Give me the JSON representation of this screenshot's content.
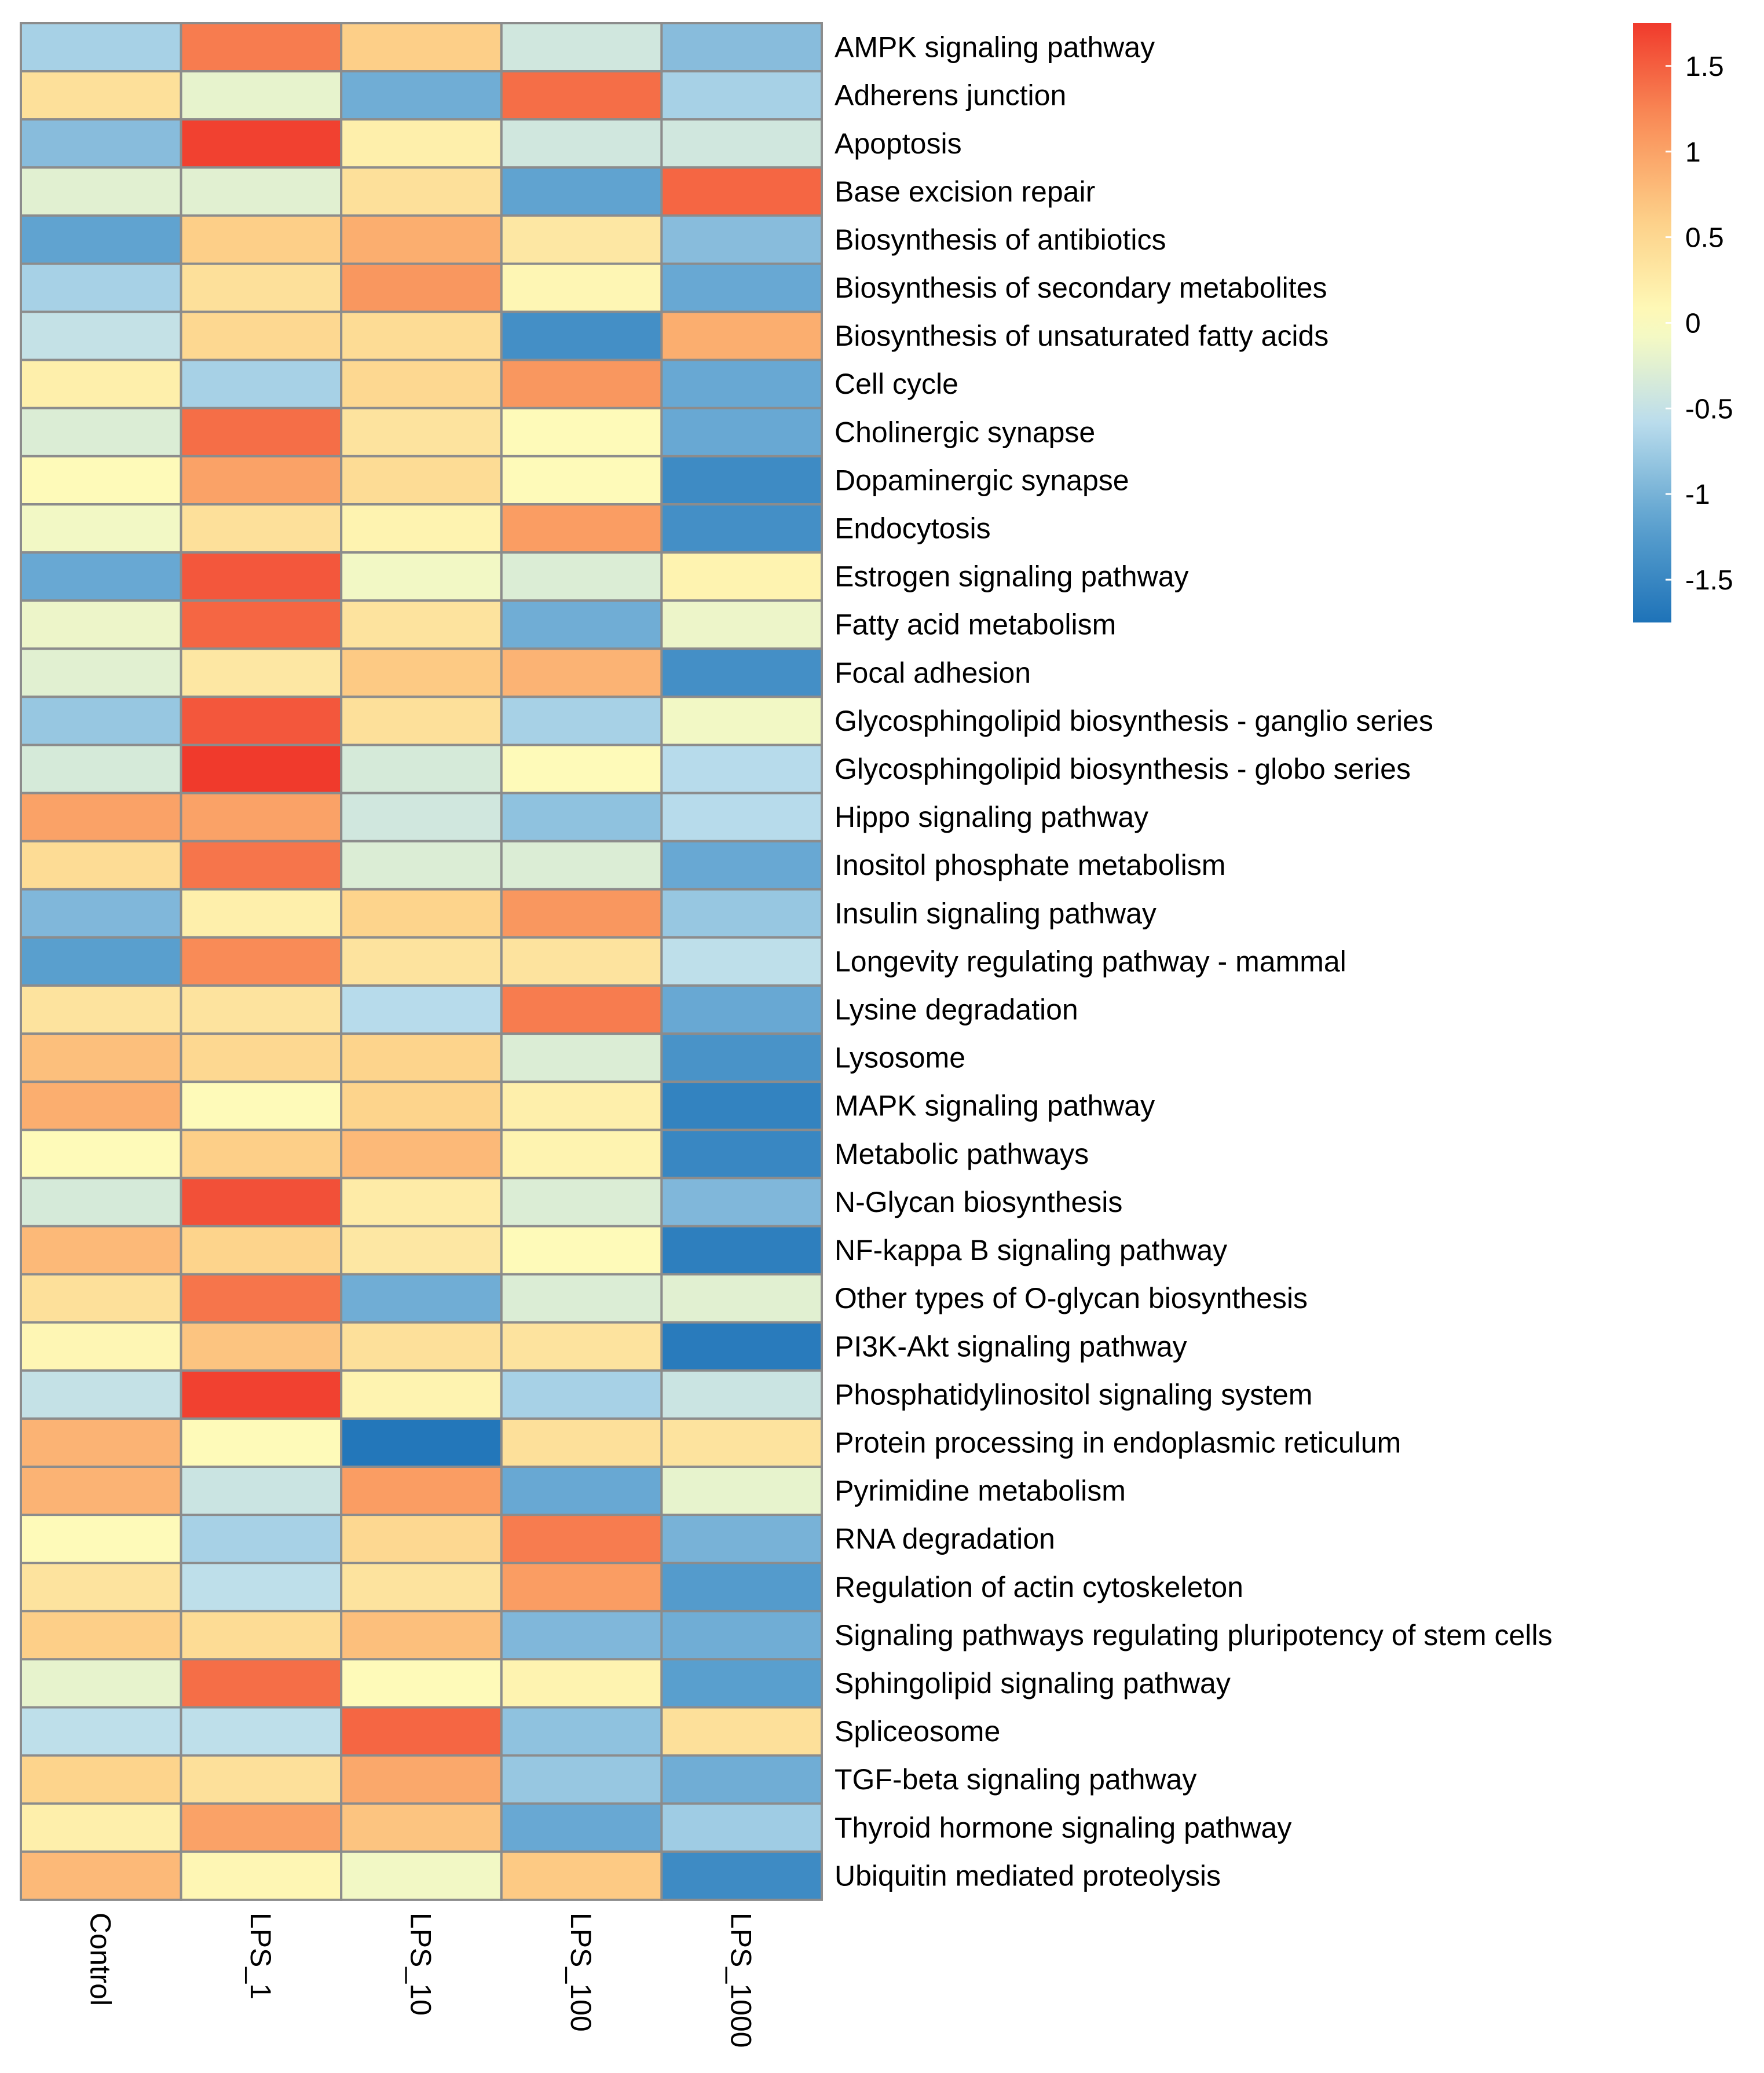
{
  "chart_data": {
    "type": "heatmap",
    "title": "",
    "xlabel": "",
    "ylabel": "",
    "columns": [
      "Control",
      "LPS_1",
      "LPS_10",
      "LPS_100",
      "LPS_1000"
    ],
    "rows": [
      "AMPK signaling pathway",
      "Adherens junction",
      "Apoptosis",
      "Base excision repair",
      "Biosynthesis of antibiotics",
      "Biosynthesis of secondary metabolites",
      "Biosynthesis of unsaturated fatty acids",
      "Cell cycle",
      "Cholinergic synapse",
      "Dopaminergic synapse",
      "Endocytosis",
      "Estrogen signaling pathway",
      "Fatty acid metabolism",
      "Focal adhesion",
      "Glycosphingolipid biosynthesis - ganglio series",
      "Glycosphingolipid biosynthesis - globo series",
      "Hippo signaling pathway",
      "Inositol phosphate metabolism",
      "Insulin signaling pathway",
      "Longevity regulating pathway - mammal",
      "Lysine degradation",
      "Lysosome",
      "MAPK signaling pathway",
      "Metabolic pathways",
      "N-Glycan biosynthesis",
      "NF-kappa B signaling pathway",
      "Other types of O-glycan biosynthesis",
      "PI3K-Akt signaling pathway",
      "Phosphatidylinositol signaling system",
      "Protein processing in endoplasmic reticulum",
      "Pyrimidine metabolism",
      "RNA degradation",
      "Regulation of actin cytoskeleton",
      "Signaling pathways regulating pluripotency of stem cells",
      "Sphingolipid signaling pathway",
      "Spliceosome",
      "TGF-beta signaling pathway",
      "Thyroid hormone signaling pathway",
      "Ubiquitin mediated proteolysis"
    ],
    "values": [
      [
        -0.7,
        1.3,
        0.6,
        -0.4,
        -0.9
      ],
      [
        0.4,
        -0.2,
        -1.05,
        1.4,
        -0.7
      ],
      [
        -0.9,
        1.7,
        0.2,
        -0.4,
        -0.4
      ],
      [
        -0.25,
        -0.25,
        0.4,
        -1.15,
        1.45
      ],
      [
        -1.15,
        0.6,
        0.9,
        0.3,
        -0.9
      ],
      [
        -0.7,
        0.4,
        1.1,
        0.1,
        -1.1
      ],
      [
        -0.5,
        0.5,
        0.45,
        -1.4,
        0.9
      ],
      [
        0.2,
        -0.7,
        0.5,
        1.1,
        -1.1
      ],
      [
        -0.3,
        1.4,
        0.35,
        0.05,
        -1.1
      ],
      [
        0.05,
        1.0,
        0.45,
        0.05,
        -1.45
      ],
      [
        -0.1,
        0.4,
        0.15,
        1.05,
        -1.4
      ],
      [
        -1.1,
        1.55,
        -0.1,
        -0.3,
        0.15
      ],
      [
        -0.15,
        1.45,
        0.35,
        -1.05,
        -0.15
      ],
      [
        -0.25,
        0.3,
        0.65,
        0.85,
        -1.4
      ],
      [
        -0.8,
        1.55,
        0.4,
        -0.7,
        -0.1
      ],
      [
        -0.35,
        1.75,
        -0.35,
        0.05,
        -0.6
      ],
      [
        1.0,
        1.0,
        -0.4,
        -0.85,
        -0.6
      ],
      [
        0.45,
        1.35,
        -0.3,
        -0.3,
        -1.1
      ],
      [
        -0.95,
        0.2,
        0.55,
        1.1,
        -0.8
      ],
      [
        -1.2,
        1.2,
        0.35,
        0.35,
        -0.55
      ],
      [
        0.35,
        0.35,
        -0.6,
        1.3,
        -1.1
      ],
      [
        0.75,
        0.5,
        0.55,
        -0.3,
        -1.35
      ],
      [
        0.9,
        0.05,
        0.55,
        0.2,
        -1.55
      ],
      [
        0.05,
        0.6,
        0.8,
        0.15,
        -1.5
      ],
      [
        -0.35,
        1.6,
        0.25,
        -0.3,
        -0.95
      ],
      [
        0.8,
        0.55,
        0.3,
        0.05,
        -1.6
      ],
      [
        0.4,
        1.35,
        -1.05,
        -0.3,
        -0.25
      ],
      [
        0.1,
        0.7,
        0.4,
        0.35,
        -1.65
      ],
      [
        -0.5,
        1.7,
        0.15,
        -0.7,
        -0.45
      ],
      [
        0.85,
        0.05,
        -1.7,
        0.4,
        0.35
      ],
      [
        0.85,
        -0.45,
        1.05,
        -1.1,
        -0.2
      ],
      [
        0.05,
        -0.7,
        0.5,
        1.3,
        -1.0
      ],
      [
        0.35,
        -0.55,
        0.35,
        1.05,
        -1.25
      ],
      [
        0.6,
        0.45,
        0.75,
        -0.95,
        -1.05
      ],
      [
        -0.2,
        1.4,
        0.05,
        0.15,
        -1.2
      ],
      [
        -0.55,
        -0.55,
        1.45,
        -0.85,
        0.4
      ],
      [
        0.55,
        0.4,
        0.95,
        -0.8,
        -1.05
      ],
      [
        0.2,
        1.0,
        0.7,
        -1.1,
        -0.75
      ],
      [
        0.8,
        0.1,
        -0.1,
        0.65,
        -1.45
      ]
    ],
    "color_scale": {
      "min": -1.75,
      "max": 1.75,
      "low_color": "#1e73b8",
      "mid_color": "#fefebd",
      "high_color": "#f03a2c"
    },
    "legend": {
      "position": "top-right",
      "ticks": [
        1.5,
        1,
        0.5,
        0,
        -0.5,
        -1,
        -1.5
      ],
      "tick_labels": [
        "1.5",
        "1",
        "0.5",
        "0",
        "-0.5",
        "-1",
        "-1.5"
      ]
    },
    "grid": true
  }
}
